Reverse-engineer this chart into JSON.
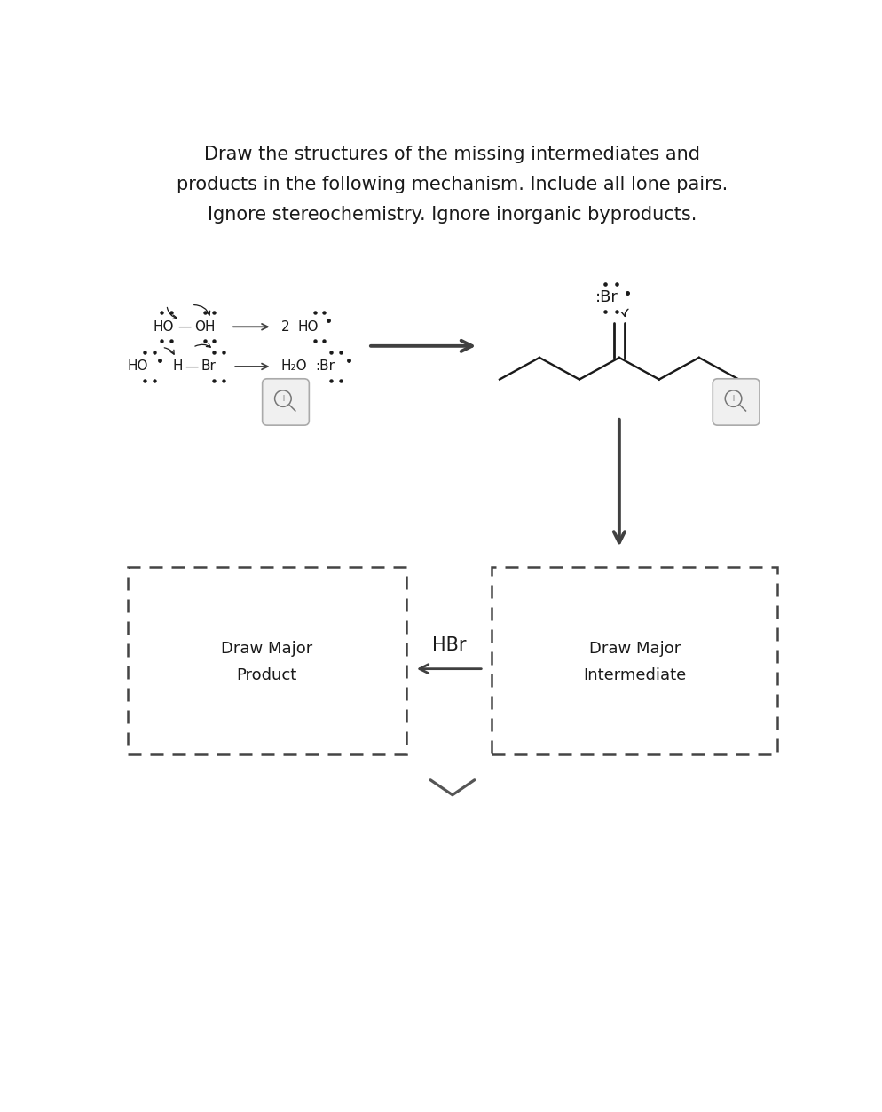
{
  "title_lines": [
    "Draw the structures of the missing intermediates and",
    "products in the following mechanism. Include all lone pairs.",
    "Ignore stereochemistry. Ignore inorganic byproducts."
  ],
  "title_fontsize": 15,
  "bg_color": "#ffffff",
  "text_color": "#1a1a1a",
  "arrow_color": "#404040",
  "box_dash_color": "#333333"
}
